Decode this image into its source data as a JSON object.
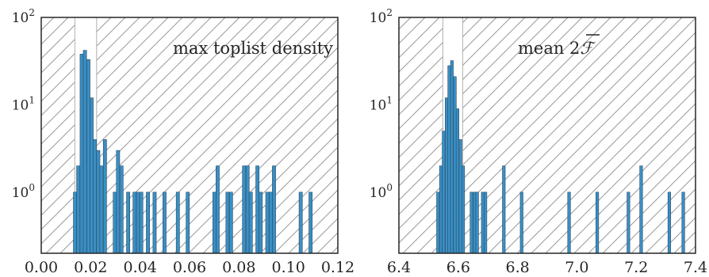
{
  "chart_data": [
    {
      "type": "histogram",
      "annotation": "max toplist density",
      "xlim": [
        0.0,
        0.12
      ],
      "ylim_log": [
        0.2,
        100
      ],
      "yscale": "log",
      "x_ticks": [
        "0.00",
        "0.02",
        "0.04",
        "0.06",
        "0.08",
        "0.10",
        "0.12"
      ],
      "x_tick_values": [
        0.0,
        0.02,
        0.04,
        0.06,
        0.08,
        0.1,
        0.12
      ],
      "y_ticks": [
        {
          "value": 1,
          "base": "10",
          "exp": "0"
        },
        {
          "value": 10,
          "base": "10",
          "exp": "1"
        },
        {
          "value": 100,
          "base": "10",
          "exp": "2"
        }
      ],
      "unhatched_region": [
        0.0136,
        0.0224
      ],
      "bin_width": 0.00134,
      "bins_left_edges": [
        0.013,
        0.0143,
        0.0157,
        0.017,
        0.0184,
        0.0197,
        0.021,
        0.0224,
        0.0237,
        0.0251,
        0.0291,
        0.0304,
        0.0318,
        0.0345,
        0.0371,
        0.0385,
        0.0398,
        0.0425,
        0.0452,
        0.0492,
        0.0546,
        0.0586,
        0.0694,
        0.0707,
        0.0747,
        0.0761,
        0.0814,
        0.0828,
        0.0841,
        0.0868,
        0.0881,
        0.0908,
        0.0922,
        0.0935,
        0.1043,
        0.1083
      ],
      "counts": [
        1,
        2,
        38,
        42,
        33,
        12,
        4,
        3,
        2,
        4,
        1,
        3,
        2,
        1,
        1,
        1,
        1,
        1,
        1,
        1,
        1,
        1,
        1,
        2,
        1,
        1,
        2,
        2,
        1,
        2,
        1,
        1,
        1,
        2,
        1,
        1
      ]
    },
    {
      "type": "histogram",
      "annotation_prefix": "mean 2",
      "annotation_symbol": "ℱ",
      "xlim": [
        6.4,
        7.4
      ],
      "ylim_log": [
        0.2,
        100
      ],
      "yscale": "log",
      "x_ticks": [
        "6.4",
        "6.6",
        "6.8",
        "7.0",
        "7.2",
        "7.4"
      ],
      "x_tick_values": [
        6.4,
        6.6,
        6.8,
        7.0,
        7.2,
        7.4
      ],
      "y_ticks": [
        {
          "value": 1,
          "base": "10",
          "exp": "0"
        },
        {
          "value": 10,
          "base": "10",
          "exp": "1"
        },
        {
          "value": 100,
          "base": "10",
          "exp": "2"
        }
      ],
      "unhatched_region": [
        6.548,
        6.615
      ],
      "bin_width": 0.0094,
      "bins_left_edges": [
        6.527,
        6.537,
        6.546,
        6.556,
        6.565,
        6.574,
        6.584,
        6.593,
        6.603,
        6.612,
        6.64,
        6.65,
        6.659,
        6.678,
        6.687,
        6.749,
        6.809,
        6.969,
        7.064,
        7.169,
        7.212,
        7.307,
        7.354
      ],
      "counts": [
        1,
        2,
        5,
        12,
        28,
        32,
        21,
        9,
        4,
        2,
        1,
        1,
        1,
        1,
        1,
        2,
        1,
        1,
        1,
        1,
        2,
        1,
        1
      ]
    }
  ]
}
